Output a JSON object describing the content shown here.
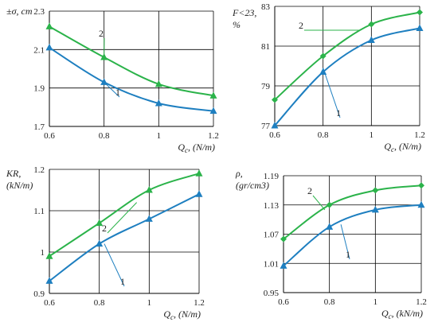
{
  "colors": {
    "series1": "#1e7fc0",
    "series2": "#2bb34a"
  },
  "chart_data": [
    {
      "type": "line",
      "ylabel": "±σ, cm",
      "xlabel": "Qc, (N/m)",
      "xlabel_main": "Q",
      "xlabel_sub": "c",
      "xlabel_units": ", (N/m)",
      "ylabel_lines": [
        "±σ, cm"
      ],
      "x": [
        0.6,
        0.8,
        1.0,
        1.2
      ],
      "xlim": [
        0.6,
        1.2
      ],
      "ylim": [
        1.7,
        2.3
      ],
      "xticks": [
        "0.6",
        "0.8",
        "1",
        "1.2"
      ],
      "yticks": [
        "1.7",
        "1.9",
        "2.1",
        "2.3"
      ],
      "series": [
        {
          "name": "1",
          "values": [
            2.11,
            1.93,
            1.82,
            1.78
          ],
          "marker": "triangle"
        },
        {
          "name": "2",
          "values": [
            2.22,
            2.06,
            1.92,
            1.86
          ],
          "marker": "triangle"
        }
      ],
      "grid": true
    },
    {
      "type": "line",
      "ylabel": "F<23, %",
      "xlabel": "Qc, (N/m)",
      "xlabel_main": "Q",
      "xlabel_sub": "c",
      "xlabel_units": ", (N/m)",
      "ylabel_lines": [
        "F<23,",
        "%"
      ],
      "x": [
        0.6,
        0.8,
        1.0,
        1.2
      ],
      "xlim": [
        0.6,
        1.2
      ],
      "ylim": [
        77,
        83
      ],
      "xticks": [
        "0.6",
        "0.8",
        "1",
        "1.2"
      ],
      "yticks": [
        "77",
        "79",
        "81",
        "83"
      ],
      "series": [
        {
          "name": "1",
          "values": [
            77.0,
            79.7,
            81.3,
            81.9
          ],
          "marker": "triangle"
        },
        {
          "name": "2",
          "values": [
            78.3,
            80.5,
            82.1,
            82.7
          ],
          "marker": "diamond"
        }
      ],
      "grid": true
    },
    {
      "type": "line",
      "ylabel": "KR, (kN/m)",
      "xlabel": "Qc, (N/m)",
      "xlabel_main": "Q",
      "xlabel_sub": "c",
      "xlabel_units": ", (N/m)",
      "ylabel_lines": [
        "KR,",
        "(kN/m)"
      ],
      "x": [
        0.6,
        0.8,
        1.0,
        1.2
      ],
      "xlim": [
        0.6,
        1.2
      ],
      "ylim": [
        0.9,
        1.2
      ],
      "xticks": [
        "0.6",
        "0.8",
        "1",
        "1.2"
      ],
      "yticks": [
        "0.9",
        "1",
        "1.1",
        "1.2"
      ],
      "series": [
        {
          "name": "1",
          "values": [
            0.93,
            1.02,
            1.08,
            1.14
          ],
          "marker": "triangle"
        },
        {
          "name": "2",
          "values": [
            0.99,
            1.07,
            1.15,
            1.19
          ],
          "marker": "triangle"
        }
      ],
      "grid": true
    },
    {
      "type": "line",
      "ylabel": "ρ, (gr/cm3)",
      "xlabel": "Qc, (kN/m)",
      "xlabel_main": "Q",
      "xlabel_sub": "c",
      "xlabel_units": ", (kN/m)",
      "ylabel_lines": [
        "ρ,",
        "(gr/cm3)"
      ],
      "x": [
        0.6,
        0.8,
        1.0,
        1.2
      ],
      "xlim": [
        0.6,
        1.2
      ],
      "ylim": [
        0.95,
        1.19
      ],
      "xticks": [
        "0.6",
        "0.8",
        "1",
        "1.2"
      ],
      "yticks": [
        "0.95",
        "1.01",
        "1.07",
        "1.13",
        "1.19"
      ],
      "series": [
        {
          "name": "1",
          "values": [
            1.005,
            1.085,
            1.12,
            1.13
          ],
          "marker": "triangle"
        },
        {
          "name": "2",
          "values": [
            1.06,
            1.13,
            1.16,
            1.17
          ],
          "marker": "diamond"
        }
      ],
      "grid": true
    }
  ]
}
